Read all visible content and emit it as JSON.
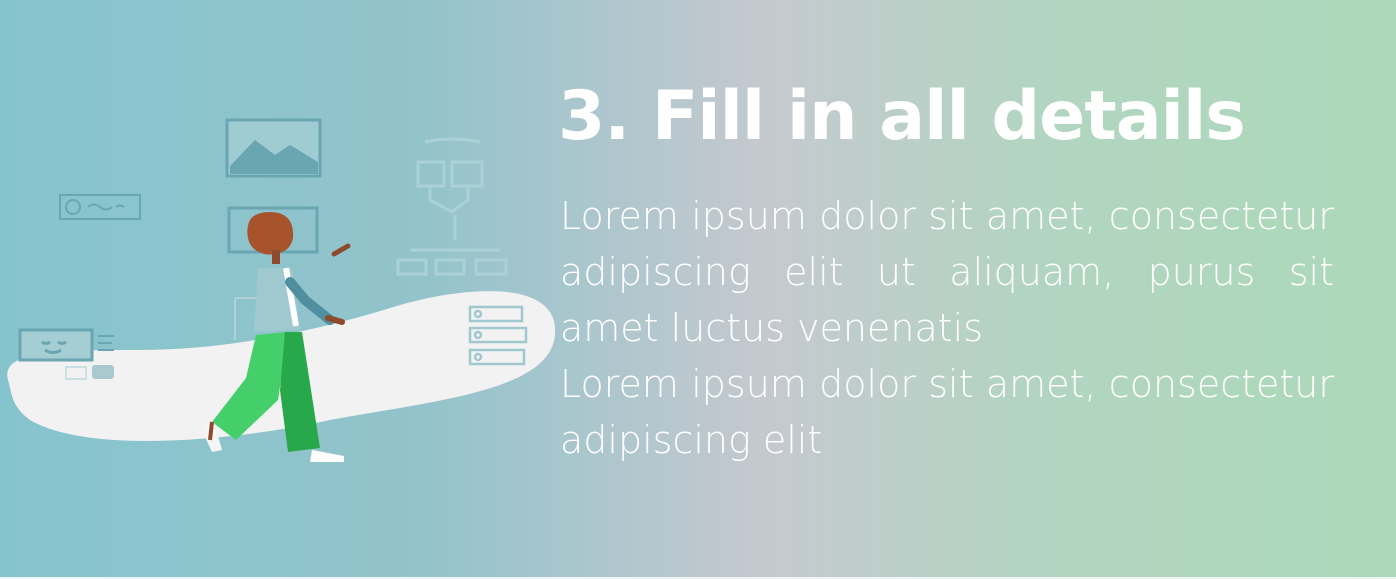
{
  "heading": "3. Fill in all details",
  "paragraphs": [
    "Lorem ipsum dolor sit amet, consectetur adipiscing elit ut aliquam, purus sit amet luctus venenatis",
    "Lorem ipsum dolor sit amet, consectetur adipiscing elit"
  ],
  "colors": {
    "gradient_left": "#86c4cd",
    "gradient_mid": "#c5c9cf",
    "gradient_right": "#acd9b9",
    "text": "#ffffff",
    "sketch_lines": "#5f9fac",
    "pants": "#45cf6a",
    "hair": "#a7532c"
  },
  "illustration": {
    "subject": "person-walking-past-wireframe-sketches",
    "icons": [
      "image-frame-icon",
      "form-field-icon",
      "flowchart-icon",
      "list-icon",
      "smiley-card-icon"
    ]
  }
}
